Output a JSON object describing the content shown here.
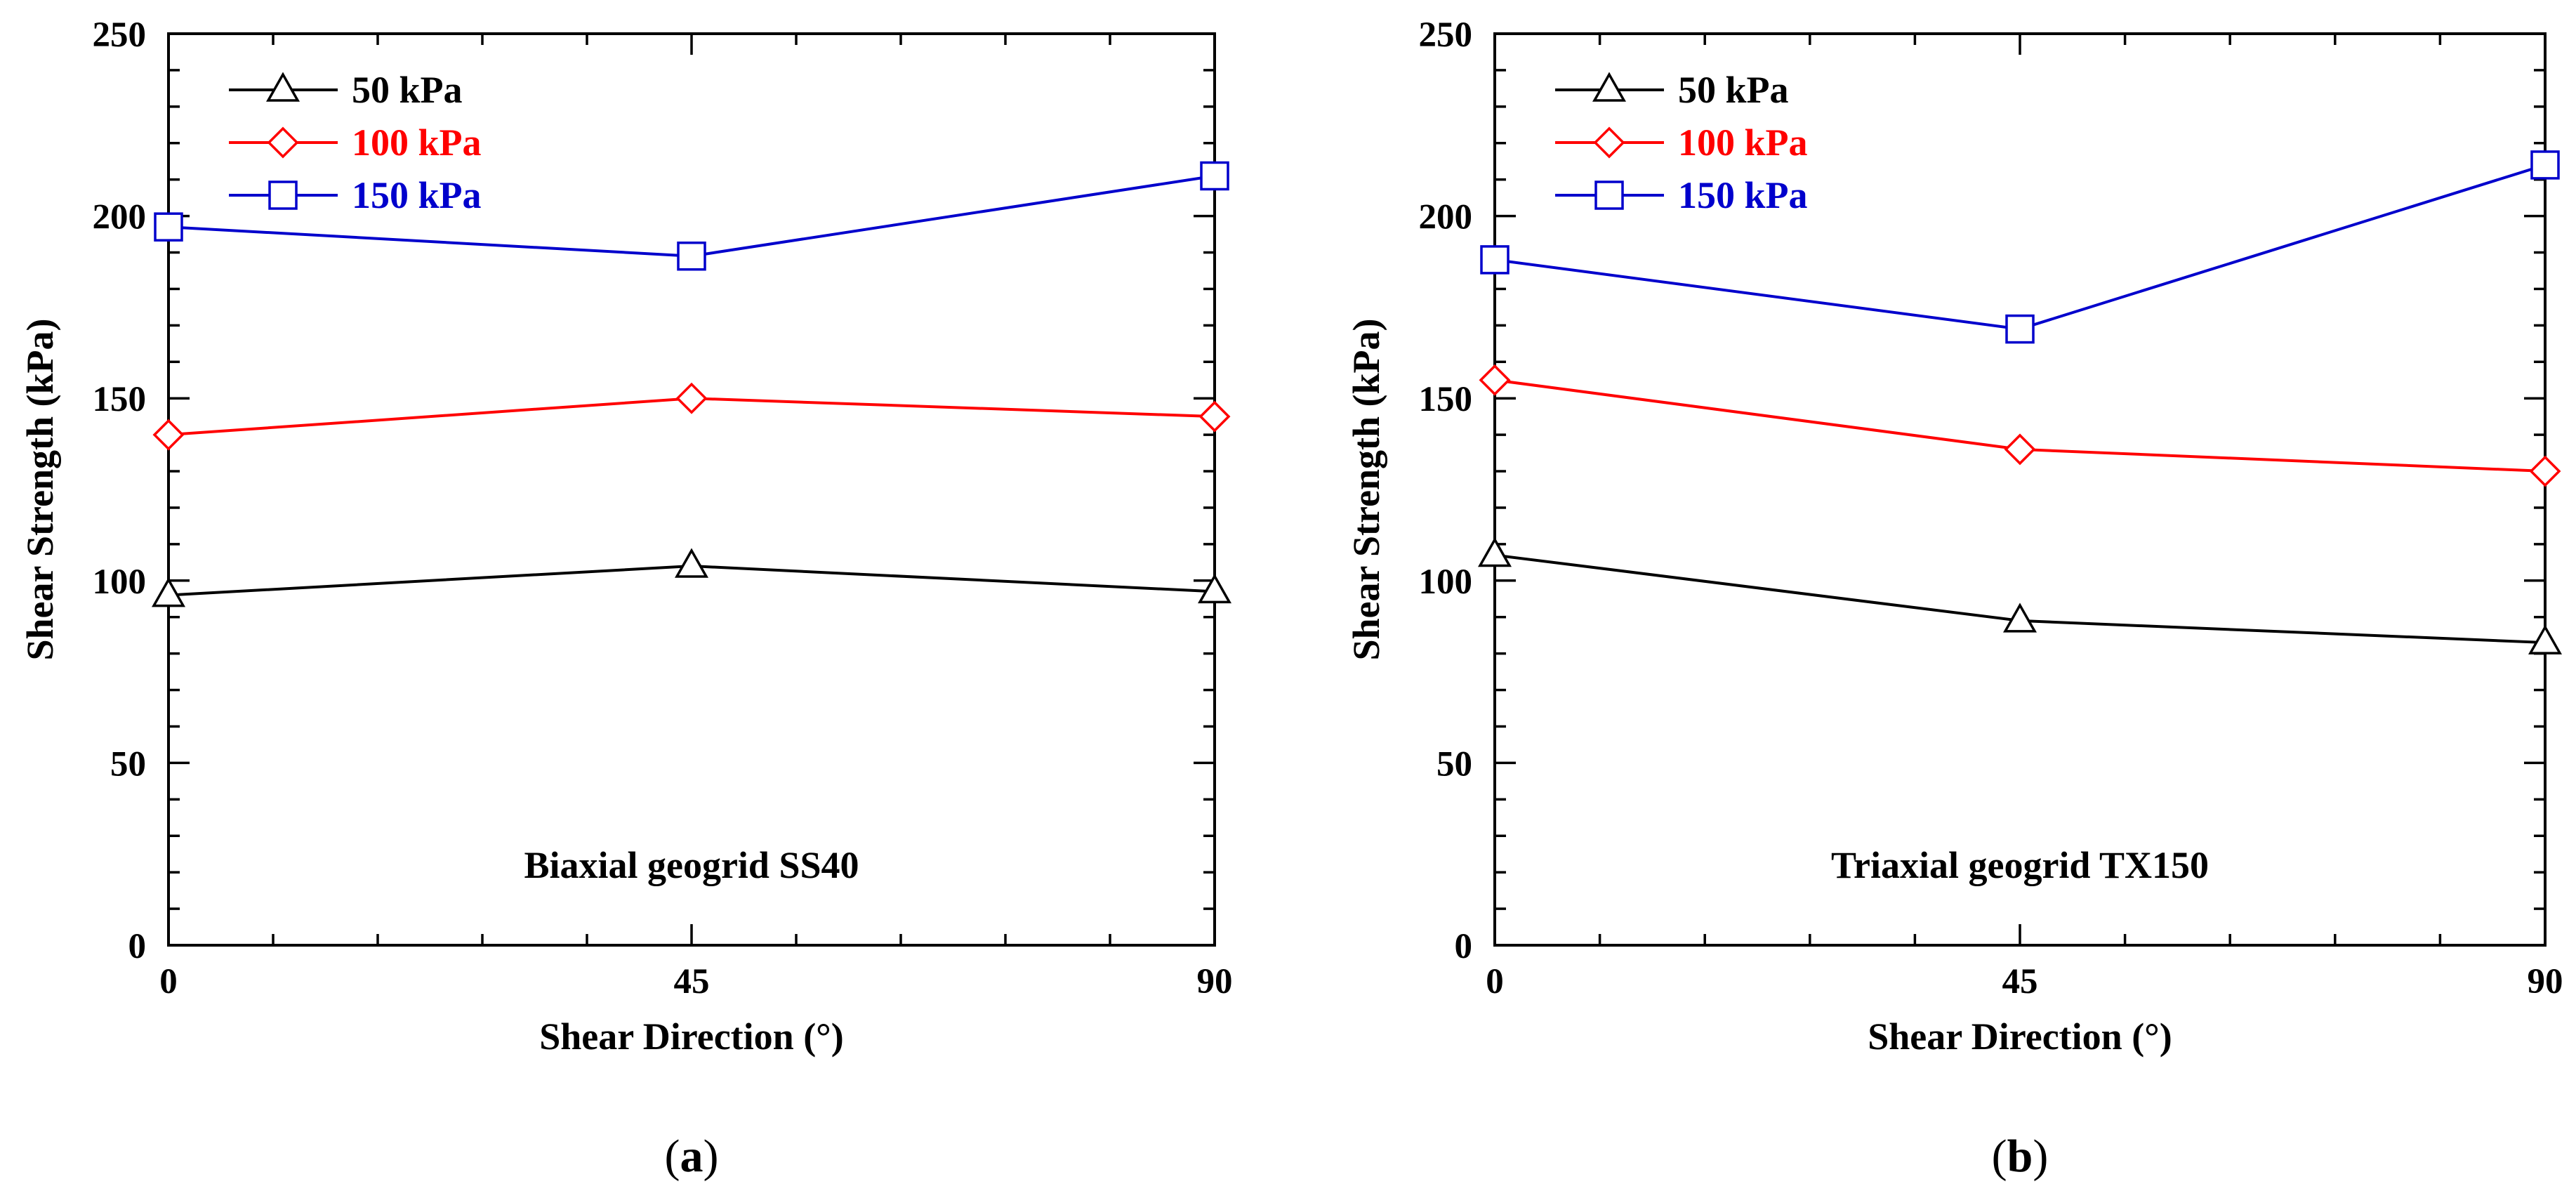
{
  "chart_data": [
    {
      "panel": "a",
      "type": "line",
      "annotation": "Biaxial geogrid SS40",
      "caption": "a",
      "xlabel": "Shear Direction (°)",
      "ylabel": "Shear Strength (kPa)",
      "x": [
        0,
        45,
        90
      ],
      "xticks": [
        0,
        45,
        90
      ],
      "xlim": [
        0,
        90
      ],
      "ylim": [
        0,
        250
      ],
      "yticks": [
        0,
        50,
        100,
        150,
        200,
        250
      ],
      "legend_position": "top-left",
      "series": [
        {
          "name": "50 kPa",
          "color": "#000000",
          "marker": "triangle",
          "values": [
            96,
            104,
            97
          ]
        },
        {
          "name": "100 kPa",
          "color": "#ff0000",
          "marker": "diamond",
          "values": [
            140,
            150,
            145
          ]
        },
        {
          "name": "150 kPa",
          "color": "#0000cc",
          "marker": "square",
          "values": [
            197,
            189,
            211
          ]
        }
      ]
    },
    {
      "panel": "b",
      "type": "line",
      "annotation": "Triaxial geogrid TX150",
      "caption": "b",
      "xlabel": "Shear Direction (°)",
      "ylabel": "Shear Strength (kPa)",
      "x": [
        0,
        45,
        90
      ],
      "xticks": [
        0,
        45,
        90
      ],
      "xlim": [
        0,
        90
      ],
      "ylim": [
        0,
        250
      ],
      "yticks": [
        0,
        50,
        100,
        150,
        200,
        250
      ],
      "legend_position": "top-left",
      "series": [
        {
          "name": "50 kPa",
          "color": "#000000",
          "marker": "triangle",
          "values": [
            107,
            89,
            83
          ]
        },
        {
          "name": "100 kPa",
          "color": "#ff0000",
          "marker": "diamond",
          "values": [
            155,
            136,
            130
          ]
        },
        {
          "name": "150 kPa",
          "color": "#0000cc",
          "marker": "square",
          "values": [
            188,
            169,
            214
          ]
        }
      ]
    }
  ]
}
